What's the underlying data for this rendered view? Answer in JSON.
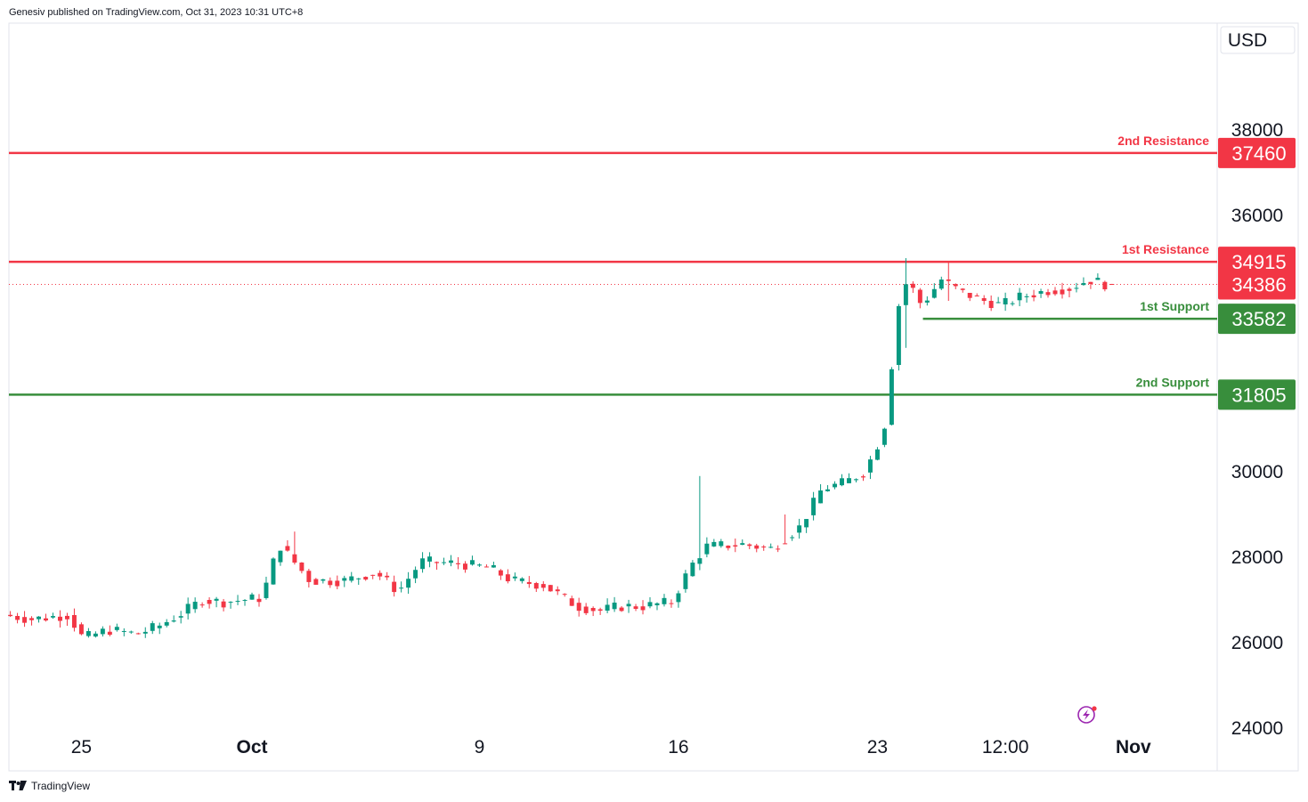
{
  "attribution": "Genesiv published on TradingView.com, Oct 31, 2023 10:31 UTC+8",
  "footer": {
    "brand": "TradingView",
    "logo_icon": "tradingview-logo-icon"
  },
  "currency": "USD",
  "colors": {
    "up": "#089981",
    "down": "#f23645",
    "resistance": "#f23645",
    "support": "#388e3c",
    "current": "#f23645"
  },
  "chart_data": {
    "type": "candlestick",
    "currency": "USD",
    "ylim": [
      23000,
      40500
    ],
    "y_ticks": [
      24000,
      26000,
      28000,
      30000,
      36000,
      38000
    ],
    "x_ticks": [
      {
        "label": "25",
        "x": 0,
        "bold": false
      },
      {
        "label": "Oct",
        "x": 6,
        "bold": true
      },
      {
        "label": "9",
        "x": 14,
        "bold": false
      },
      {
        "label": "16",
        "x": 21,
        "bold": false
      },
      {
        "label": "23",
        "x": 28,
        "bold": false
      },
      {
        "label": "12:00",
        "x": 32.5,
        "bold": false
      },
      {
        "label": "Nov",
        "x": 37,
        "bold": true
      }
    ],
    "xlim": [
      -2.55,
      39.95
    ],
    "levels": [
      {
        "name": "2nd Resistance",
        "value": 37460,
        "badge": "37460",
        "kind": "resistance",
        "x_start": -2.55
      },
      {
        "name": "1st Resistance",
        "value": 34915,
        "badge": "34915",
        "kind": "resistance",
        "x_start": -2.55
      },
      {
        "name": "1st Support",
        "value": 33582,
        "badge": "33582",
        "kind": "support",
        "x_start": 29.6
      },
      {
        "name": "2nd Support",
        "value": 31805,
        "badge": "31805",
        "kind": "support",
        "x_start": -2.55
      }
    ],
    "current": {
      "value": 34386,
      "label": "34386"
    },
    "anchors": [
      [
        -2.5,
        26650
      ],
      [
        -1.5,
        26550
      ],
      [
        -0.2,
        26650
      ],
      [
        0.3,
        26100
      ],
      [
        1.2,
        26300
      ],
      [
        2.2,
        26200
      ],
      [
        3,
        26400
      ],
      [
        3.8,
        26700
      ],
      [
        4.5,
        27000
      ],
      [
        5.2,
        26950
      ],
      [
        6.6,
        27050
      ],
      [
        7.2,
        28300
      ],
      [
        8.3,
        27450
      ],
      [
        9.5,
        27450
      ],
      [
        10.6,
        27650
      ],
      [
        11.4,
        27200
      ],
      [
        12.2,
        27900
      ],
      [
        13.5,
        27850
      ],
      [
        14.6,
        27750
      ],
      [
        15.4,
        27450
      ],
      [
        16.5,
        27350
      ],
      [
        17.7,
        26850
      ],
      [
        18.5,
        26750
      ],
      [
        19.2,
        26850
      ],
      [
        20,
        26850
      ],
      [
        21,
        26950
      ],
      [
        21.7,
        27800
      ],
      [
        22.2,
        28250
      ],
      [
        23.5,
        28300
      ],
      [
        24.5,
        28200
      ],
      [
        25.5,
        28700
      ],
      [
        26.3,
        29600
      ],
      [
        27.1,
        29750
      ],
      [
        27.8,
        30000
      ],
      [
        28.3,
        30700
      ],
      [
        28.6,
        31300
      ],
      [
        28.9,
        33700
      ],
      [
        29.3,
        34500
      ],
      [
        29.8,
        33900
      ],
      [
        30.5,
        34500
      ],
      [
        31.2,
        34200
      ],
      [
        32,
        34000
      ],
      [
        32.6,
        33900
      ],
      [
        33.3,
        34100
      ],
      [
        34.3,
        34250
      ],
      [
        35,
        34300
      ],
      [
        35.7,
        34500
      ],
      [
        36.3,
        34386
      ]
    ],
    "wicks": [
      {
        "t": -0.2,
        "low": 26400,
        "high": 26800
      },
      {
        "t": 7.6,
        "low": 28200,
        "high": 28600
      },
      {
        "t": 21.8,
        "low": 28000,
        "high": 29900
      },
      {
        "t": 24.7,
        "low": 28500,
        "high": 29000
      },
      {
        "t": 28.9,
        "low": 32900,
        "high": 35000
      },
      {
        "t": 30.5,
        "low": 34000,
        "high": 34900
      }
    ]
  }
}
